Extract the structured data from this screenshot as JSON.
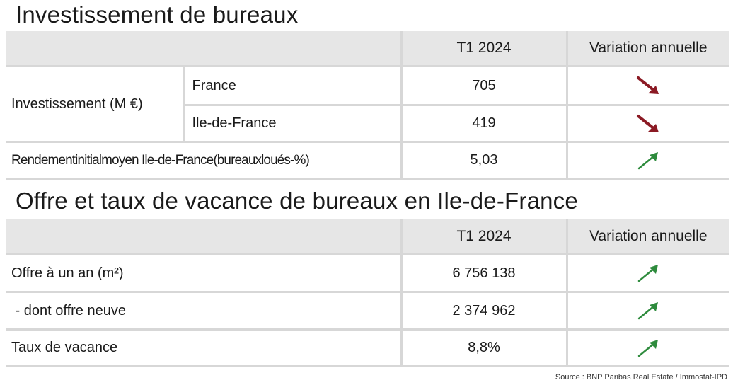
{
  "section1": {
    "title": "Investissement de bureaux",
    "header": {
      "period": "T1 2024",
      "variation": "Variation annuelle"
    },
    "rows": [
      {
        "group": "Investissement (M €)",
        "sub": "France",
        "value": "705",
        "trend": "down",
        "trend_color": "#8b1a24"
      },
      {
        "sub": "Ile-de-France",
        "value": "419",
        "trend": "down",
        "trend_color": "#8b1a24"
      },
      {
        "label": "Rendementinitialmoyen Ile-de-France(bureauxloués-%)",
        "value": "5,03",
        "trend": "up",
        "trend_color": "#2e8b3d"
      }
    ]
  },
  "section2": {
    "title": "Offre et taux de vacance de bureaux en Ile-de-France",
    "header": {
      "period": "T1 2024",
      "variation": "Variation annuelle"
    },
    "rows": [
      {
        "label": "Offre à un an (m²)",
        "value": "6 756 138",
        "trend": "up",
        "trend_color": "#2e8b3d"
      },
      {
        "label": " - dont offre neuve",
        "value": "2 374 962",
        "trend": "up",
        "trend_color": "#2e8b3d"
      },
      {
        "label": "Taux de vacance",
        "value": "8,8%",
        "trend": "up",
        "trend_color": "#2e8b3d"
      }
    ]
  },
  "source": "Source : BNP Paribas Real Estate  / Immostat-IPD",
  "icons": {
    "up": "arrow-up-right-icon",
    "down": "arrow-down-right-icon"
  }
}
